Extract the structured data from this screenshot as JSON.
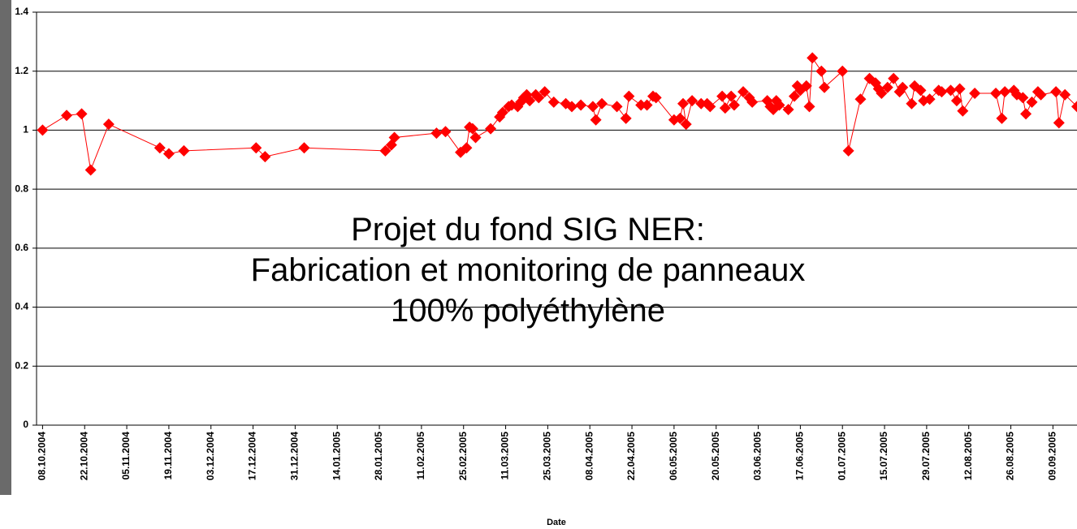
{
  "chart_data": {
    "type": "line",
    "title_lines": [
      "Projet du fond SIG NER:",
      "Fabrication et monitoring de panneaux",
      "100% polyéthylène"
    ],
    "x_label": "Date",
    "color": "#ff0000",
    "grid": true,
    "xlim": [
      "2004-10-06",
      "2005-09-17"
    ],
    "ylim": [
      0,
      1.4
    ],
    "yticks": [
      0,
      0.2,
      0.4,
      0.6,
      0.8,
      1,
      1.2,
      1.4
    ],
    "xticks": [
      {
        "value": "2004-10-08",
        "label": "08.10.2004"
      },
      {
        "value": "2004-10-22",
        "label": "22.10.2004"
      },
      {
        "value": "2004-11-05",
        "label": "05.11.2004"
      },
      {
        "value": "2004-11-19",
        "label": "19.11.2004"
      },
      {
        "value": "2004-12-03",
        "label": "03.12.2004"
      },
      {
        "value": "2004-12-17",
        "label": "17.12.2004"
      },
      {
        "value": "2004-12-31",
        "label": "31.12.2004"
      },
      {
        "value": "2005-01-14",
        "label": "14.01.2005"
      },
      {
        "value": "2005-01-28",
        "label": "28.01.2005"
      },
      {
        "value": "2005-02-11",
        "label": "11.02.2005"
      },
      {
        "value": "2005-02-25",
        "label": "25.02.2005"
      },
      {
        "value": "2005-03-11",
        "label": "11.03.2005"
      },
      {
        "value": "2005-03-25",
        "label": "25.03.2005"
      },
      {
        "value": "2005-04-08",
        "label": "08.04.2005"
      },
      {
        "value": "2005-04-22",
        "label": "22.04.2005"
      },
      {
        "value": "2005-05-06",
        "label": "06.05.2005"
      },
      {
        "value": "2005-05-20",
        "label": "20.05.2005"
      },
      {
        "value": "2005-06-03",
        "label": "03.06.2005"
      },
      {
        "value": "2005-06-17",
        "label": "17.06.2005"
      },
      {
        "value": "2005-07-01",
        "label": "01.07.2005"
      },
      {
        "value": "2005-07-15",
        "label": "15.07.2005"
      },
      {
        "value": "2005-07-29",
        "label": "29.07.2005"
      },
      {
        "value": "2005-08-12",
        "label": "12.08.2005"
      },
      {
        "value": "2005-08-26",
        "label": "26.08.2005"
      },
      {
        "value": "2005-09-09",
        "label": "09.09.2005"
      }
    ],
    "x": [
      "2004-10-08",
      "2004-10-16",
      "2004-10-21",
      "2004-10-24",
      "2004-10-30",
      "2004-11-16",
      "2004-11-19",
      "2004-11-24",
      "2004-12-18",
      "2004-12-21",
      "2005-01-03",
      "2005-01-30",
      "2005-02-01",
      "2005-02-02",
      "2005-02-16",
      "2005-02-19",
      "2005-02-24",
      "2005-02-26",
      "2005-02-27",
      "2005-02-28",
      "2005-03-01",
      "2005-03-06",
      "2005-03-09",
      "2005-03-10",
      "2005-03-12",
      "2005-03-13",
      "2005-03-15",
      "2005-03-16",
      "2005-03-17",
      "2005-03-18",
      "2005-03-19",
      "2005-03-21",
      "2005-03-22",
      "2005-03-24",
      "2005-03-27",
      "2005-03-31",
      "2005-04-02",
      "2005-04-05",
      "2005-04-09",
      "2005-04-10",
      "2005-04-12",
      "2005-04-17",
      "2005-04-20",
      "2005-04-21",
      "2005-04-25",
      "2005-04-27",
      "2005-04-29",
      "2005-04-30",
      "2005-05-06",
      "2005-05-08",
      "2005-05-09",
      "2005-05-10",
      "2005-05-12",
      "2005-05-15",
      "2005-05-17",
      "2005-05-18",
      "2005-05-22",
      "2005-05-23",
      "2005-05-25",
      "2005-05-26",
      "2005-05-29",
      "2005-05-31",
      "2005-06-01",
      "2005-06-06",
      "2005-06-07",
      "2005-06-08",
      "2005-06-09",
      "2005-06-10",
      "2005-06-13",
      "2005-06-15",
      "2005-06-16",
      "2005-06-17",
      "2005-06-19",
      "2005-06-20",
      "2005-06-21",
      "2005-06-24",
      "2005-06-25",
      "2005-07-01",
      "2005-07-03",
      "2005-07-07",
      "2005-07-10",
      "2005-07-12",
      "2005-07-13",
      "2005-07-14",
      "2005-07-16",
      "2005-07-18",
      "2005-07-20",
      "2005-07-21",
      "2005-07-24",
      "2005-07-25",
      "2005-07-27",
      "2005-07-28",
      "2005-07-30",
      "2005-08-02",
      "2005-08-03",
      "2005-08-06",
      "2005-08-08",
      "2005-08-09",
      "2005-08-10",
      "2005-08-14",
      "2005-08-21",
      "2005-08-23",
      "2005-08-24",
      "2005-08-27",
      "2005-08-28",
      "2005-08-30",
      "2005-08-31",
      "2005-09-02",
      "2005-09-04",
      "2005-09-05",
      "2005-09-10",
      "2005-09-11",
      "2005-09-13",
      "2005-09-17"
    ],
    "values": [
      1.0,
      1.05,
      1.055,
      0.865,
      1.02,
      0.94,
      0.92,
      0.93,
      0.94,
      0.91,
      0.94,
      0.93,
      0.95,
      0.975,
      0.99,
      0.995,
      0.925,
      0.94,
      1.01,
      1.005,
      0.975,
      1.005,
      1.045,
      1.06,
      1.08,
      1.085,
      1.08,
      1.095,
      1.11,
      1.12,
      1.1,
      1.12,
      1.11,
      1.13,
      1.095,
      1.09,
      1.08,
      1.085,
      1.08,
      1.035,
      1.09,
      1.08,
      1.04,
      1.115,
      1.085,
      1.085,
      1.115,
      1.11,
      1.035,
      1.04,
      1.09,
      1.02,
      1.1,
      1.09,
      1.09,
      1.08,
      1.115,
      1.075,
      1.115,
      1.085,
      1.13,
      1.11,
      1.095,
      1.1,
      1.08,
      1.07,
      1.1,
      1.085,
      1.07,
      1.115,
      1.15,
      1.135,
      1.15,
      1.08,
      1.245,
      1.2,
      1.145,
      1.2,
      0.93,
      1.105,
      1.175,
      1.16,
      1.14,
      1.125,
      1.145,
      1.175,
      1.13,
      1.145,
      1.09,
      1.15,
      1.135,
      1.1,
      1.105,
      1.135,
      1.13,
      1.135,
      1.1,
      1.14,
      1.065,
      1.125,
      1.125,
      1.04,
      1.13,
      1.135,
      1.12,
      1.11,
      1.055,
      1.095,
      1.13,
      1.12,
      1.13,
      1.025,
      1.12,
      1.08
    ]
  }
}
